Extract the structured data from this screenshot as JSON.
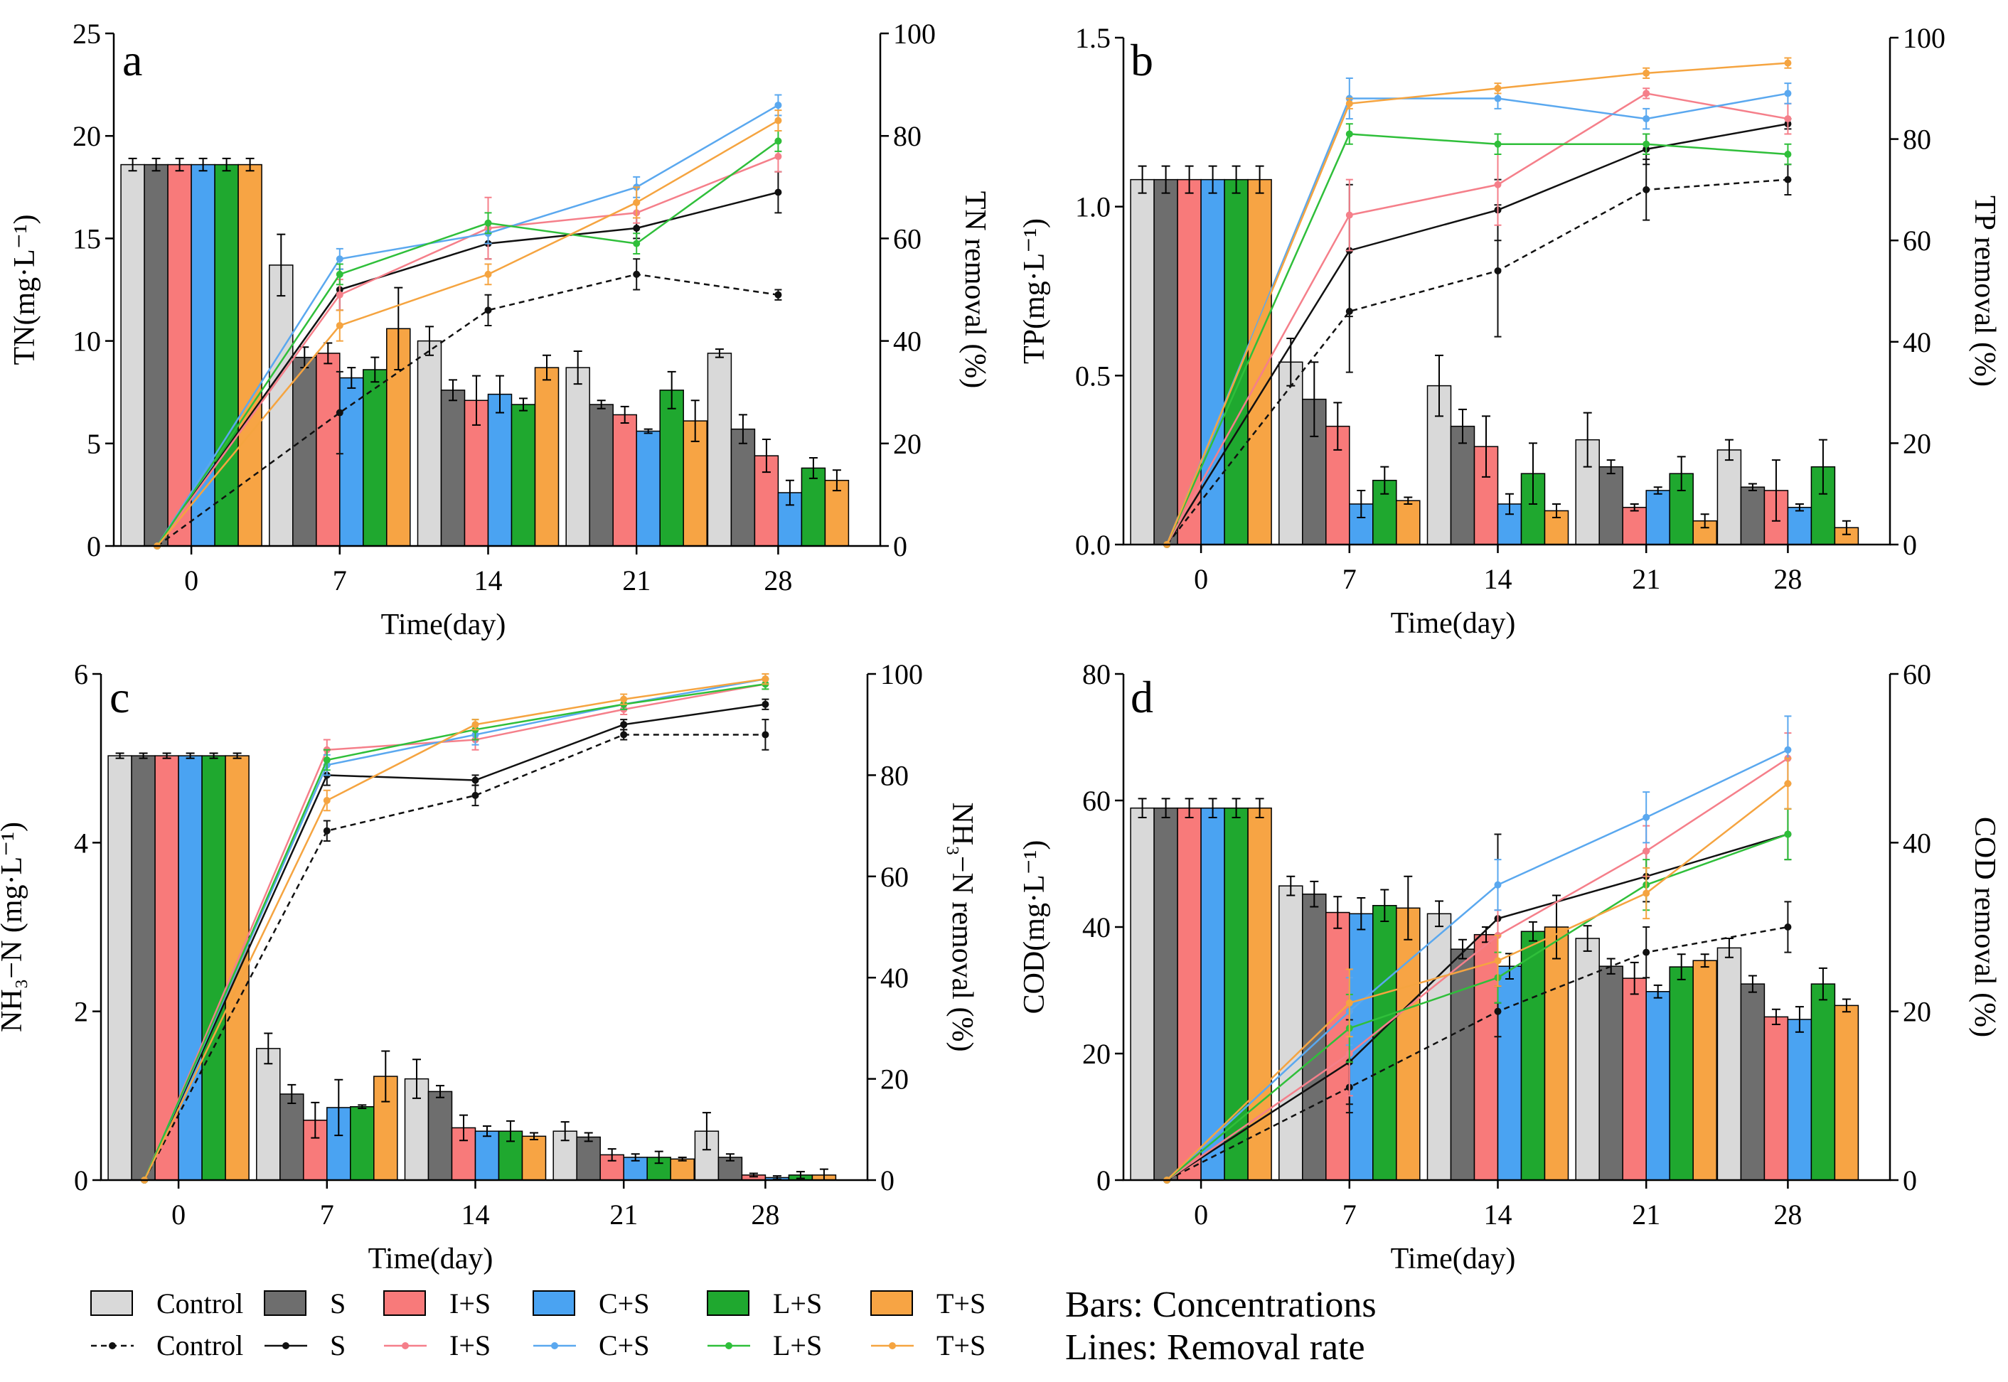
{
  "colors": {
    "Control": "#d9d9d9",
    "S": "#6e6e6e",
    "I+S": "#f87a7a",
    "C+S": "#4aa3f2",
    "L+S": "#1fa82f",
    "T+S": "#f7a444"
  },
  "line_colors": {
    "Control": "#111111",
    "S": "#111111",
    "I+S": "#f57f8a",
    "C+S": "#5aa8ef",
    "L+S": "#2fbf3a",
    "T+S": "#f5a440"
  },
  "legend": {
    "bars": [
      "Control",
      "S",
      "I+S",
      "C+S",
      "L+S",
      "T+S"
    ],
    "lines": [
      "Control",
      "S",
      "I+S",
      "C+S",
      "L+S",
      "T+S"
    ],
    "note_bars": "Bars: Concentrations",
    "note_lines": "Lines: Removal rate"
  },
  "chart_data": [
    {
      "panel": "a",
      "type": "bar",
      "title": "",
      "xlabel": "Time(day)",
      "ylabel": "TN(mg·L⁻¹)",
      "y2label": "TN removal (%)",
      "categories": [
        "0",
        "7",
        "14",
        "21",
        "28"
      ],
      "ylim": [
        0,
        25
      ],
      "yticks": [
        "0",
        "5",
        "10",
        "15",
        "20",
        "25"
      ],
      "y2lim": [
        0,
        100
      ],
      "y2ticks": [
        "0",
        "20",
        "40",
        "60",
        "80",
        "100"
      ],
      "series": [
        {
          "name": "Control",
          "values": [
            18.6,
            13.7,
            10.0,
            8.7,
            9.4
          ],
          "errors": [
            0.3,
            1.5,
            0.7,
            0.8,
            0.2
          ]
        },
        {
          "name": "S",
          "values": [
            18.6,
            9.2,
            7.6,
            6.9,
            5.7
          ],
          "errors": [
            0.3,
            0.5,
            0.5,
            0.2,
            0.7
          ]
        },
        {
          "name": "I+S",
          "values": [
            18.6,
            9.4,
            7.1,
            6.4,
            4.4
          ],
          "errors": [
            0.3,
            0.5,
            1.2,
            0.4,
            0.8
          ]
        },
        {
          "name": "C+S",
          "values": [
            18.6,
            8.2,
            7.4,
            5.6,
            2.6
          ],
          "errors": [
            0.3,
            0.5,
            0.9,
            0.1,
            0.6
          ]
        },
        {
          "name": "L+S",
          "values": [
            18.6,
            8.6,
            6.9,
            7.6,
            3.8
          ],
          "errors": [
            0.3,
            0.6,
            0.3,
            0.9,
            0.5
          ]
        },
        {
          "name": "T+S",
          "values": [
            18.6,
            10.6,
            8.7,
            6.1,
            3.2
          ],
          "errors": [
            0.3,
            2.0,
            0.6,
            1.0,
            0.5
          ]
        }
      ],
      "lines": [
        {
          "name": "Control",
          "values": [
            0,
            26,
            46,
            53,
            49
          ],
          "errors": [
            0,
            8,
            3,
            3,
            1
          ]
        },
        {
          "name": "S",
          "values": [
            0,
            50,
            59,
            62,
            69
          ],
          "errors": [
            0,
            4,
            3,
            2,
            4
          ]
        },
        {
          "name": "I+S",
          "values": [
            0,
            49,
            62,
            65,
            76
          ],
          "errors": [
            0,
            3,
            6,
            2,
            3
          ]
        },
        {
          "name": "C+S",
          "values": [
            0,
            56,
            61,
            70,
            86
          ],
          "errors": [
            0,
            2,
            2,
            2,
            2
          ]
        },
        {
          "name": "L+S",
          "values": [
            0,
            53,
            63,
            59,
            79
          ],
          "errors": [
            0,
            2,
            2,
            2,
            2
          ]
        },
        {
          "name": "T+S",
          "values": [
            0,
            43,
            53,
            67,
            83
          ],
          "errors": [
            0,
            3,
            2,
            3,
            2
          ]
        }
      ]
    },
    {
      "panel": "b",
      "type": "bar",
      "title": "",
      "xlabel": "Time(day)",
      "ylabel": "TP(mg·L⁻¹)",
      "y2label": "TP removal (%)",
      "categories": [
        "0",
        "7",
        "14",
        "21",
        "28"
      ],
      "ylim": [
        0,
        1.5
      ],
      "yticks": [
        "0.0",
        "0.5",
        "1.0",
        "1.5"
      ],
      "y2lim": [
        0,
        100
      ],
      "y2ticks": [
        "0",
        "20",
        "40",
        "60",
        "80",
        "100"
      ],
      "series": [
        {
          "name": "Control",
          "values": [
            1.08,
            0.54,
            0.47,
            0.31,
            0.28
          ],
          "errors": [
            0.04,
            0.07,
            0.09,
            0.08,
            0.03
          ]
        },
        {
          "name": "S",
          "values": [
            1.08,
            0.43,
            0.35,
            0.23,
            0.17
          ],
          "errors": [
            0.04,
            0.11,
            0.05,
            0.02,
            0.01
          ]
        },
        {
          "name": "I+S",
          "values": [
            1.08,
            0.35,
            0.29,
            0.11,
            0.16
          ],
          "errors": [
            0.04,
            0.07,
            0.09,
            0.01,
            0.09
          ]
        },
        {
          "name": "C+S",
          "values": [
            1.08,
            0.12,
            0.12,
            0.16,
            0.11
          ],
          "errors": [
            0.04,
            0.04,
            0.03,
            0.01,
            0.01
          ]
        },
        {
          "name": "L+S",
          "values": [
            1.08,
            0.19,
            0.21,
            0.21,
            0.23
          ],
          "errors": [
            0.04,
            0.04,
            0.09,
            0.05,
            0.08
          ]
        },
        {
          "name": "T+S",
          "values": [
            1.08,
            0.13,
            0.1,
            0.07,
            0.05
          ],
          "errors": [
            0.04,
            0.01,
            0.02,
            0.02,
            0.02
          ]
        }
      ],
      "lines": [
        {
          "name": "Control",
          "values": [
            0,
            46,
            54,
            70,
            72
          ],
          "errors": [
            0,
            12,
            13,
            6,
            3
          ]
        },
        {
          "name": "S",
          "values": [
            0,
            58,
            66,
            78,
            83
          ],
          "errors": [
            0,
            13,
            6,
            3,
            1
          ]
        },
        {
          "name": "I+S",
          "values": [
            0,
            65,
            71,
            89,
            84
          ],
          "errors": [
            0,
            7,
            8,
            1,
            3
          ]
        },
        {
          "name": "C+S",
          "values": [
            0,
            88,
            88,
            84,
            89
          ],
          "errors": [
            0,
            4,
            2,
            2,
            2
          ]
        },
        {
          "name": "L+S",
          "values": [
            0,
            81,
            79,
            79,
            77
          ],
          "errors": [
            0,
            2,
            2,
            2,
            2
          ]
        },
        {
          "name": "T+S",
          "values": [
            0,
            87,
            90,
            93,
            95
          ],
          "errors": [
            0,
            1,
            1,
            1,
            1
          ]
        }
      ]
    },
    {
      "panel": "c",
      "type": "bar",
      "title": "",
      "xlabel": "Time(day)",
      "ylabel": "NH₃−N (mg·L⁻¹)",
      "y2label": "NH₃−N removal (%)",
      "categories": [
        "0",
        "7",
        "14",
        "21",
        "28"
      ],
      "ylim": [
        0,
        6
      ],
      "yticks": [
        "0",
        "2",
        "4",
        "6"
      ],
      "y2lim": [
        0,
        100
      ],
      "y2ticks": [
        "0",
        "20",
        "40",
        "60",
        "80",
        "100"
      ],
      "series": [
        {
          "name": "Control",
          "values": [
            5.03,
            1.56,
            1.2,
            0.58,
            0.58
          ],
          "errors": [
            0.03,
            0.18,
            0.23,
            0.11,
            0.22
          ]
        },
        {
          "name": "S",
          "values": [
            5.03,
            1.02,
            1.05,
            0.51,
            0.27
          ],
          "errors": [
            0.03,
            0.11,
            0.07,
            0.05,
            0.04
          ]
        },
        {
          "name": "I+S",
          "values": [
            5.03,
            0.71,
            0.62,
            0.3,
            0.06
          ],
          "errors": [
            0.03,
            0.21,
            0.15,
            0.07,
            0.02
          ]
        },
        {
          "name": "C+S",
          "values": [
            5.03,
            0.86,
            0.58,
            0.27,
            0.03
          ],
          "errors": [
            0.03,
            0.33,
            0.06,
            0.04,
            0.02
          ]
        },
        {
          "name": "L+S",
          "values": [
            5.03,
            0.87,
            0.58,
            0.27,
            0.06
          ],
          "errors": [
            0.03,
            0.02,
            0.12,
            0.07,
            0.04
          ]
        },
        {
          "name": "T+S",
          "values": [
            5.03,
            1.23,
            0.52,
            0.25,
            0.06
          ],
          "errors": [
            0.03,
            0.3,
            0.04,
            0.02,
            0.07
          ]
        }
      ],
      "lines": [
        {
          "name": "Control",
          "values": [
            0,
            69,
            76,
            88,
            88
          ],
          "errors": [
            0,
            2,
            2,
            1,
            3
          ]
        },
        {
          "name": "S",
          "values": [
            0,
            80,
            79,
            90,
            94
          ],
          "errors": [
            0,
            2,
            1,
            1,
            1
          ]
        },
        {
          "name": "I+S",
          "values": [
            0,
            85,
            87,
            93,
            98
          ],
          "errors": [
            0,
            2,
            2,
            1,
            1
          ]
        },
        {
          "name": "C+S",
          "values": [
            0,
            82,
            88,
            94,
            99
          ],
          "errors": [
            0,
            2,
            2,
            1,
            1
          ]
        },
        {
          "name": "L+S",
          "values": [
            0,
            83,
            89,
            94,
            98
          ],
          "errors": [
            0,
            2,
            2,
            1,
            1
          ]
        },
        {
          "name": "T+S",
          "values": [
            0,
            75,
            90,
            95,
            99
          ],
          "errors": [
            0,
            2,
            1,
            1,
            1
          ]
        }
      ]
    },
    {
      "panel": "d",
      "type": "bar",
      "title": "",
      "xlabel": "Time(day)",
      "ylabel": "COD(mg·L⁻¹)",
      "y2label": "COD removal (%)",
      "categories": [
        "0",
        "7",
        "14",
        "21",
        "28"
      ],
      "ylim": [
        0,
        80
      ],
      "yticks": [
        "0",
        "20",
        "40",
        "60",
        "80"
      ],
      "y2lim": [
        0,
        60
      ],
      "y2ticks": [
        "0",
        "20",
        "40",
        "60"
      ],
      "series": [
        {
          "name": "Control",
          "values": [
            58.8,
            46.5,
            42.1,
            38.2,
            36.7
          ],
          "errors": [
            1.5,
            1.5,
            2.0,
            2.0,
            1.5
          ]
        },
        {
          "name": "S",
          "values": [
            58.8,
            45.2,
            36.5,
            33.8,
            31.0
          ],
          "errors": [
            1.5,
            2.0,
            1.5,
            1.2,
            1.3
          ]
        },
        {
          "name": "I+S",
          "values": [
            58.8,
            42.3,
            38.8,
            31.9,
            25.8
          ],
          "errors": [
            1.5,
            2.5,
            1.2,
            2.5,
            1.2
          ]
        },
        {
          "name": "C+S",
          "values": [
            58.8,
            42.1,
            33.8,
            29.8,
            25.4
          ],
          "errors": [
            1.5,
            2.5,
            2.0,
            1.0,
            2.0
          ]
        },
        {
          "name": "L+S",
          "values": [
            58.8,
            43.4,
            39.3,
            33.7,
            31.0
          ],
          "errors": [
            1.5,
            2.5,
            1.5,
            2.0,
            2.5
          ]
        },
        {
          "name": "T+S",
          "values": [
            58.8,
            43.0,
            40.0,
            34.7,
            27.6
          ],
          "errors": [
            1.5,
            5.0,
            5.0,
            1.0,
            1.0
          ]
        }
      ],
      "lines": [
        {
          "name": "Control",
          "values": [
            0,
            11,
            20,
            27,
            30
          ],
          "errors": [
            0,
            3,
            3,
            3,
            3
          ]
        },
        {
          "name": "S",
          "values": [
            0,
            14,
            31,
            36,
            41
          ],
          "errors": [
            0,
            5,
            10,
            3,
            3
          ]
        },
        {
          "name": "I+S",
          "values": [
            0,
            15,
            29,
            39,
            50
          ],
          "errors": [
            0,
            5,
            3,
            3,
            3
          ]
        },
        {
          "name": "C+S",
          "values": [
            0,
            20,
            35,
            43,
            51
          ],
          "errors": [
            0,
            4,
            3,
            3,
            4
          ]
        },
        {
          "name": "L+S",
          "values": [
            0,
            18,
            24,
            35,
            41
          ],
          "errors": [
            0,
            4,
            3,
            3,
            3
          ]
        },
        {
          "name": "T+S",
          "values": [
            0,
            21,
            26,
            34,
            47
          ],
          "errors": [
            0,
            4,
            3,
            3,
            3
          ]
        }
      ]
    }
  ]
}
